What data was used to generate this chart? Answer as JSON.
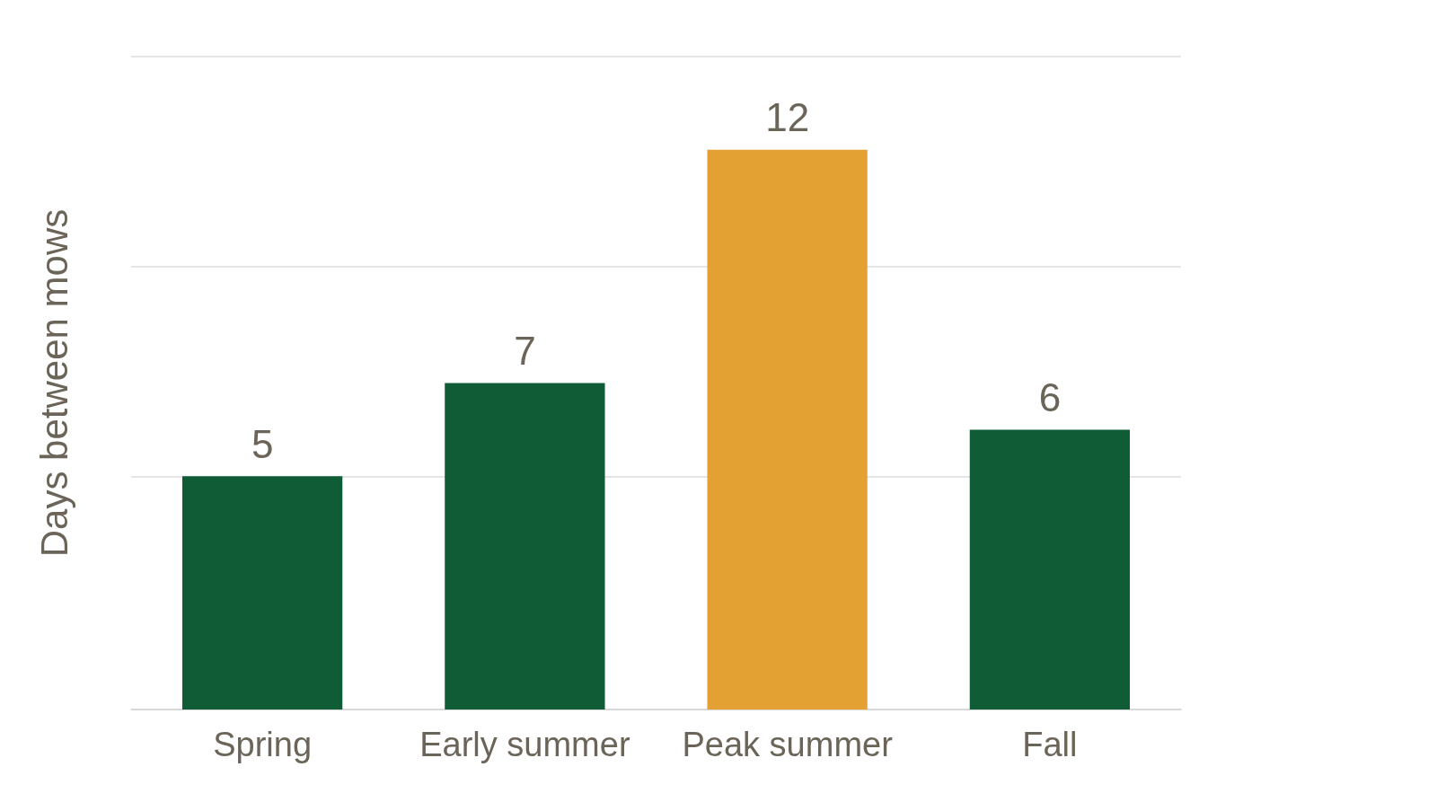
{
  "chart_data": {
    "type": "bar",
    "ylabel": "Days between mows",
    "categories": [
      "Spring",
      "Early summer",
      "Peak summer",
      "Fall"
    ],
    "values": [
      5,
      7,
      12,
      6
    ],
    "colors": [
      "#0f5c36",
      "#0f5c36",
      "#e3a033",
      "#0f5c36"
    ],
    "data_labels": true,
    "ylim": [
      0,
      14
    ],
    "yticks": [
      {
        "value": 0,
        "label": null
      },
      {
        "value": 5,
        "label": null
      },
      {
        "value": 9.5,
        "label": null
      },
      {
        "value": 14,
        "label": null
      }
    ],
    "tick_labels": "x",
    "grid": "y"
  }
}
